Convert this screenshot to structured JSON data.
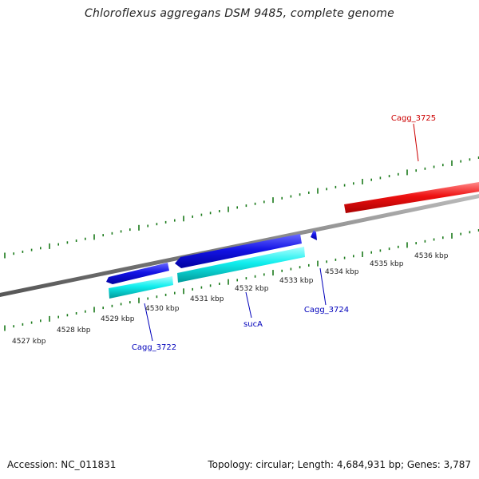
{
  "title": "Chloroflexus aggregans DSM 9485, complete genome",
  "footer": {
    "accession": "Accession: NC_011831",
    "summary": "Topology: circular; Length: 4,684,931 bp; Genes: 3,787"
  },
  "colors": {
    "backbone": "#808080",
    "tick": "#1a7a1a",
    "forward_gene": "#d40000",
    "reverse_gene": "#0000e0",
    "reverse_cds": "#00e0e0",
    "forward_label": "#cc0000",
    "reverse_label": "#0000bb",
    "scale_label": "#222222"
  },
  "scale_labels": [
    "4527 kbp",
    "4528 kbp",
    "4529 kbp",
    "4530 kbp",
    "4531 kbp",
    "4532 kbp",
    "4533 kbp",
    "4534 kbp",
    "4535 kbp",
    "4536 kbp"
  ],
  "gene_labels": {
    "cagg_3725": "Cagg_3725",
    "cagg_3722": "Cagg_3722",
    "sucA": "sucA",
    "cagg_3724": "Cagg_3724"
  }
}
